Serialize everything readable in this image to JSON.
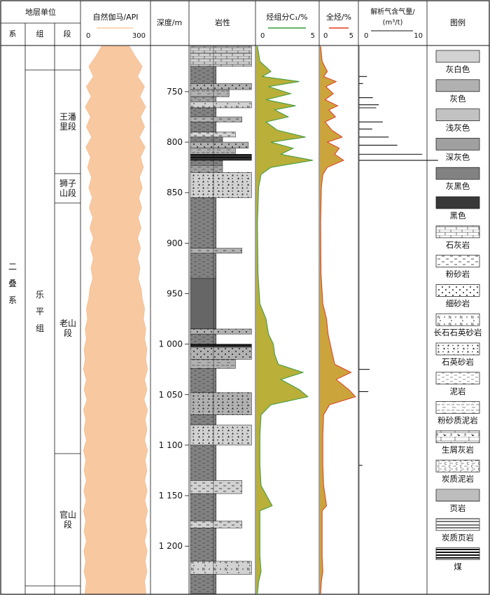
{
  "header": {
    "stratigraphy": "地层单位",
    "system": "系",
    "formation": "组",
    "member": "段",
    "gamma_title": "自然伽马/API",
    "gamma_min": "0",
    "gamma_max": "300",
    "depth_title": "深度/m",
    "lithology_title": "岩性",
    "c1_title": "烃组分C₁/%",
    "c1_min": "0",
    "c1_max": "5",
    "total_title": "全烃/%",
    "total_min": "0",
    "total_max": "5",
    "gas_title_1": "解析气含气量/",
    "gas_title_2": "(m³/t)",
    "gas_min": "0",
    "gas_max": "10",
    "legend_title": "图例"
  },
  "units": {
    "system": "二叠系",
    "formation": "乐平组",
    "members": [
      {
        "name": "王潘里段",
        "top": 715,
        "bottom": 825
      },
      {
        "name": "狮子山段",
        "top": 825,
        "bottom": 850
      },
      {
        "name": "老山段",
        "top": 850,
        "bottom": 1110
      },
      {
        "name": "官山段",
        "top": 1110,
        "bottom": 1245
      }
    ]
  },
  "legend": [
    {
      "key": "lightgray",
      "label": "灰白色",
      "color": "#d2d2d2"
    },
    {
      "key": "gray",
      "label": "灰色",
      "color": "#b1b1b1"
    },
    {
      "key": "pale",
      "label": "浅灰色",
      "color": "#c2c2c2"
    },
    {
      "key": "dark",
      "label": "深灰色",
      "color": "#a0a0a0"
    },
    {
      "key": "grayblack",
      "label": "灰黑色",
      "color": "#828282"
    },
    {
      "key": "black",
      "label": "黑色",
      "color": "#383838"
    },
    {
      "key": "limestone",
      "label": "石灰岩",
      "color": "#ffffff"
    },
    {
      "key": "siltstone",
      "label": "粉砂岩",
      "color": "#ffffff"
    },
    {
      "key": "finesand",
      "label": "细砂岩",
      "color": "#ffffff"
    },
    {
      "key": "arkose",
      "label": "长石石英砂岩",
      "color": "#ffffff"
    },
    {
      "key": "quartzsand",
      "label": "石英砂岩",
      "color": "#ffffff"
    },
    {
      "key": "mudstone",
      "label": "泥岩",
      "color": "#ffffff"
    },
    {
      "key": "siltymud",
      "label": "粉砂质泥岩",
      "color": "#ffffff"
    },
    {
      "key": "bioclastic",
      "label": "生屑灰岩",
      "color": "#ffffff"
    },
    {
      "key": "carbmud",
      "label": "炭质泥岩",
      "color": "#ffffff"
    },
    {
      "key": "shale",
      "label": "页岩",
      "color": "#ffffff"
    },
    {
      "key": "carbshale",
      "label": "炭质页岩",
      "color": "#ffffff"
    },
    {
      "key": "coal",
      "label": "煤",
      "color": "#ffffff"
    }
  ],
  "chart_data": {
    "type": "line",
    "depth_range": [
      705,
      1247
    ],
    "depth_ticks": [
      750,
      800,
      850,
      900,
      950,
      1000,
      1050,
      1100,
      1150,
      1200
    ],
    "depth_tick_labels": [
      "750",
      "800",
      "850",
      "900",
      "950",
      "1 000",
      "1 050",
      "1 100",
      "1 150",
      "1 200"
    ],
    "gamma": {
      "xlim": [
        0,
        300
      ],
      "color": "#f8c8a0",
      "points": [
        [
          705,
          120
        ],
        [
          715,
          170
        ],
        [
          725,
          230
        ],
        [
          735,
          190
        ],
        [
          745,
          250
        ],
        [
          755,
          210
        ],
        [
          765,
          260
        ],
        [
          775,
          215
        ],
        [
          785,
          250
        ],
        [
          795,
          205
        ],
        [
          805,
          255
        ],
        [
          815,
          215
        ],
        [
          825,
          240
        ],
        [
          835,
          205
        ],
        [
          845,
          230
        ],
        [
          855,
          200
        ],
        [
          865,
          225
        ],
        [
          875,
          195
        ],
        [
          885,
          220
        ],
        [
          895,
          190
        ],
        [
          905,
          215
        ],
        [
          915,
          190
        ],
        [
          925,
          210
        ],
        [
          935,
          195
        ],
        [
          945,
          220
        ],
        [
          955,
          230
        ],
        [
          965,
          250
        ],
        [
          975,
          240
        ],
        [
          985,
          260
        ],
        [
          995,
          250
        ],
        [
          1005,
          270
        ],
        [
          1015,
          260
        ],
        [
          1025,
          275
        ],
        [
          1035,
          250
        ],
        [
          1045,
          270
        ],
        [
          1055,
          245
        ],
        [
          1065,
          275
        ],
        [
          1075,
          255
        ],
        [
          1085,
          270
        ],
        [
          1095,
          250
        ],
        [
          1105,
          275
        ],
        [
          1115,
          255
        ],
        [
          1125,
          270
        ],
        [
          1135,
          250
        ],
        [
          1145,
          272
        ],
        [
          1155,
          252
        ],
        [
          1165,
          275
        ],
        [
          1175,
          255
        ],
        [
          1185,
          270
        ],
        [
          1195,
          250
        ],
        [
          1205,
          272
        ],
        [
          1215,
          255
        ],
        [
          1225,
          270
        ],
        [
          1235,
          250
        ],
        [
          1247,
          262
        ]
      ]
    },
    "c1": {
      "xlim": [
        0,
        5
      ],
      "color": "#3a9a3a",
      "fill": "#b5ab2e",
      "points": [
        [
          705,
          0.1
        ],
        [
          720,
          0.3
        ],
        [
          730,
          1.2
        ],
        [
          735,
          0.5
        ],
        [
          740,
          3.5
        ],
        [
          745,
          1.0
        ],
        [
          752,
          2.8
        ],
        [
          758,
          0.8
        ],
        [
          764,
          3.2
        ],
        [
          768,
          1.5
        ],
        [
          775,
          2.6
        ],
        [
          780,
          0.8
        ],
        [
          788,
          1.7
        ],
        [
          795,
          4.0
        ],
        [
          800,
          1.2
        ],
        [
          806,
          3.0
        ],
        [
          812,
          2.0
        ],
        [
          818,
          4.6
        ],
        [
          825,
          1.2
        ],
        [
          832,
          0.4
        ],
        [
          845,
          0.2
        ],
        [
          880,
          0.1
        ],
        [
          930,
          0.15
        ],
        [
          960,
          0.3
        ],
        [
          975,
          0.8
        ],
        [
          990,
          1.0
        ],
        [
          1000,
          1.4
        ],
        [
          1010,
          1.5
        ],
        [
          1020,
          1.8
        ],
        [
          1028,
          3.8
        ],
        [
          1035,
          2.0
        ],
        [
          1045,
          3.5
        ],
        [
          1052,
          4.2
        ],
        [
          1060,
          1.2
        ],
        [
          1070,
          0.4
        ],
        [
          1090,
          0.3
        ],
        [
          1120,
          0.3
        ],
        [
          1140,
          0.4
        ],
        [
          1160,
          1.3
        ],
        [
          1165,
          0.3
        ],
        [
          1190,
          0.3
        ],
        [
          1210,
          0.3
        ],
        [
          1225,
          0.4
        ],
        [
          1235,
          0.2
        ],
        [
          1247,
          0.1
        ]
      ]
    },
    "total": {
      "xlim": [
        0,
        5
      ],
      "color": "#e03a1e",
      "fill": "#c8a032",
      "points": [
        [
          705,
          0.1
        ],
        [
          720,
          0.3
        ],
        [
          730,
          1.0
        ],
        [
          735,
          0.5
        ],
        [
          740,
          2.2
        ],
        [
          745,
          0.8
        ],
        [
          752,
          1.8
        ],
        [
          758,
          0.7
        ],
        [
          764,
          2.4
        ],
        [
          768,
          1.2
        ],
        [
          775,
          2.1
        ],
        [
          780,
          0.7
        ],
        [
          788,
          1.6
        ],
        [
          795,
          3.0
        ],
        [
          800,
          1.0
        ],
        [
          806,
          2.6
        ],
        [
          812,
          2.0
        ],
        [
          818,
          3.2
        ],
        [
          825,
          1.0
        ],
        [
          832,
          0.4
        ],
        [
          845,
          0.2
        ],
        [
          880,
          0.1
        ],
        [
          930,
          0.15
        ],
        [
          960,
          0.4
        ],
        [
          975,
          0.9
        ],
        [
          990,
          1.1
        ],
        [
          1000,
          1.4
        ],
        [
          1010,
          1.7
        ],
        [
          1020,
          2.0
        ],
        [
          1028,
          4.2
        ],
        [
          1035,
          2.2
        ],
        [
          1045,
          3.9
        ],
        [
          1052,
          4.8
        ],
        [
          1060,
          1.3
        ],
        [
          1070,
          0.5
        ],
        [
          1090,
          0.4
        ],
        [
          1120,
          0.4
        ],
        [
          1140,
          0.5
        ],
        [
          1160,
          0.9
        ],
        [
          1165,
          0.3
        ],
        [
          1190,
          0.3
        ],
        [
          1210,
          0.3
        ],
        [
          1225,
          0.4
        ],
        [
          1235,
          0.2
        ],
        [
          1247,
          0.1
        ]
      ]
    },
    "gas": {
      "xlim": [
        0,
        10
      ],
      "color": "#111111",
      "bars": [
        [
          735,
          1.2
        ],
        [
          742,
          0.6
        ],
        [
          756,
          2.1
        ],
        [
          763,
          3.0
        ],
        [
          766,
          2.6
        ],
        [
          780,
          3.6
        ],
        [
          787,
          2.0
        ],
        [
          795,
          4.5
        ],
        [
          803,
          5.8
        ],
        [
          812,
          9.6
        ],
        [
          818,
          12.0
        ],
        [
          1025,
          1.6
        ],
        [
          1047,
          1.4
        ],
        [
          1120,
          0.5
        ]
      ]
    },
    "lithology": [
      {
        "top": 705,
        "bottom": 712,
        "rock": "limestone",
        "color": "lightgray",
        "width": 0.95
      },
      {
        "top": 712,
        "bottom": 725,
        "rock": "limestone",
        "color": "lightgray",
        "width": 0.95
      },
      {
        "top": 725,
        "bottom": 742,
        "rock": "mudstone",
        "color": "grayblack",
        "width": 0.4
      },
      {
        "top": 742,
        "bottom": 748,
        "rock": "finesand",
        "color": "gray",
        "width": 0.95
      },
      {
        "top": 748,
        "bottom": 755,
        "rock": "siltymud",
        "color": "gray",
        "width": 0.6
      },
      {
        "top": 755,
        "bottom": 760,
        "rock": "mudstone",
        "color": "dark",
        "width": 0.4
      },
      {
        "top": 760,
        "bottom": 766,
        "rock": "arkose",
        "color": "lightgray",
        "width": 0.95
      },
      {
        "top": 766,
        "bottom": 775,
        "rock": "mudstone",
        "color": "grayblack",
        "width": 0.4
      },
      {
        "top": 775,
        "bottom": 780,
        "rock": "siltstone",
        "color": "gray",
        "width": 0.8
      },
      {
        "top": 780,
        "bottom": 790,
        "rock": "mudstone",
        "color": "grayblack",
        "width": 0.4
      },
      {
        "top": 790,
        "bottom": 795,
        "rock": "siltstone",
        "color": "lightgray",
        "width": 0.7
      },
      {
        "top": 795,
        "bottom": 800,
        "rock": "mudstone",
        "color": "grayblack",
        "width": 0.5
      },
      {
        "top": 800,
        "bottom": 806,
        "rock": "finesand",
        "color": "gray",
        "width": 0.9
      },
      {
        "top": 806,
        "bottom": 812,
        "rock": "siltymud",
        "color": "gray",
        "width": 0.7
      },
      {
        "top": 812,
        "bottom": 818,
        "rock": "coal",
        "color": "black",
        "width": 0.95
      },
      {
        "top": 818,
        "bottom": 823,
        "rock": "mudstone",
        "color": "grayblack",
        "width": 0.5
      },
      {
        "top": 823,
        "bottom": 830,
        "rock": "mudstone",
        "color": "dark",
        "width": 0.5
      },
      {
        "top": 830,
        "bottom": 855,
        "rock": "quartzsand",
        "color": "lightgray",
        "width": 0.95
      },
      {
        "top": 855,
        "bottom": 905,
        "rock": "mudstone",
        "color": "grayblack",
        "width": 0.4
      },
      {
        "top": 905,
        "bottom": 910,
        "rock": "siltstone",
        "color": "gray",
        "width": 0.8
      },
      {
        "top": 910,
        "bottom": 935,
        "rock": "mudstone",
        "color": "grayblack",
        "width": 0.4
      },
      {
        "top": 935,
        "bottom": 985,
        "rock": "shale",
        "color": "grayblack",
        "width": 0.4
      },
      {
        "top": 985,
        "bottom": 990,
        "rock": "finesand",
        "color": "gray",
        "width": 0.95
      },
      {
        "top": 990,
        "bottom": 1000,
        "rock": "mudstone",
        "color": "grayblack",
        "width": 0.4
      },
      {
        "top": 1000,
        "bottom": 1003,
        "rock": "coal",
        "color": "black",
        "width": 0.95
      },
      {
        "top": 1003,
        "bottom": 1015,
        "rock": "finesand",
        "color": "gray",
        "width": 0.95
      },
      {
        "top": 1015,
        "bottom": 1024,
        "rock": "siltymud",
        "color": "gray",
        "width": 0.7
      },
      {
        "top": 1024,
        "bottom": 1048,
        "rock": "mudstone",
        "color": "grayblack",
        "width": 0.4
      },
      {
        "top": 1048,
        "bottom": 1070,
        "rock": "quartzsand",
        "color": "gray",
        "width": 0.95
      },
      {
        "top": 1070,
        "bottom": 1080,
        "rock": "mudstone",
        "color": "grayblack",
        "width": 0.4
      },
      {
        "top": 1080,
        "bottom": 1100,
        "rock": "quartzsand",
        "color": "lightgray",
        "width": 0.95
      },
      {
        "top": 1100,
        "bottom": 1135,
        "rock": "mudstone",
        "color": "grayblack",
        "width": 0.4
      },
      {
        "top": 1135,
        "bottom": 1148,
        "rock": "siltstone",
        "color": "lightgray",
        "width": 0.8
      },
      {
        "top": 1148,
        "bottom": 1175,
        "rock": "mudstone",
        "color": "grayblack",
        "width": 0.4
      },
      {
        "top": 1175,
        "bottom": 1182,
        "rock": "siltstone",
        "color": "lightgray",
        "width": 0.8
      },
      {
        "top": 1182,
        "bottom": 1215,
        "rock": "mudstone",
        "color": "grayblack",
        "width": 0.4
      },
      {
        "top": 1215,
        "bottom": 1228,
        "rock": "arkose",
        "color": "lightgray",
        "width": 0.95
      },
      {
        "top": 1228,
        "bottom": 1247,
        "rock": "mudstone",
        "color": "grayblack",
        "width": 0.4
      }
    ]
  }
}
